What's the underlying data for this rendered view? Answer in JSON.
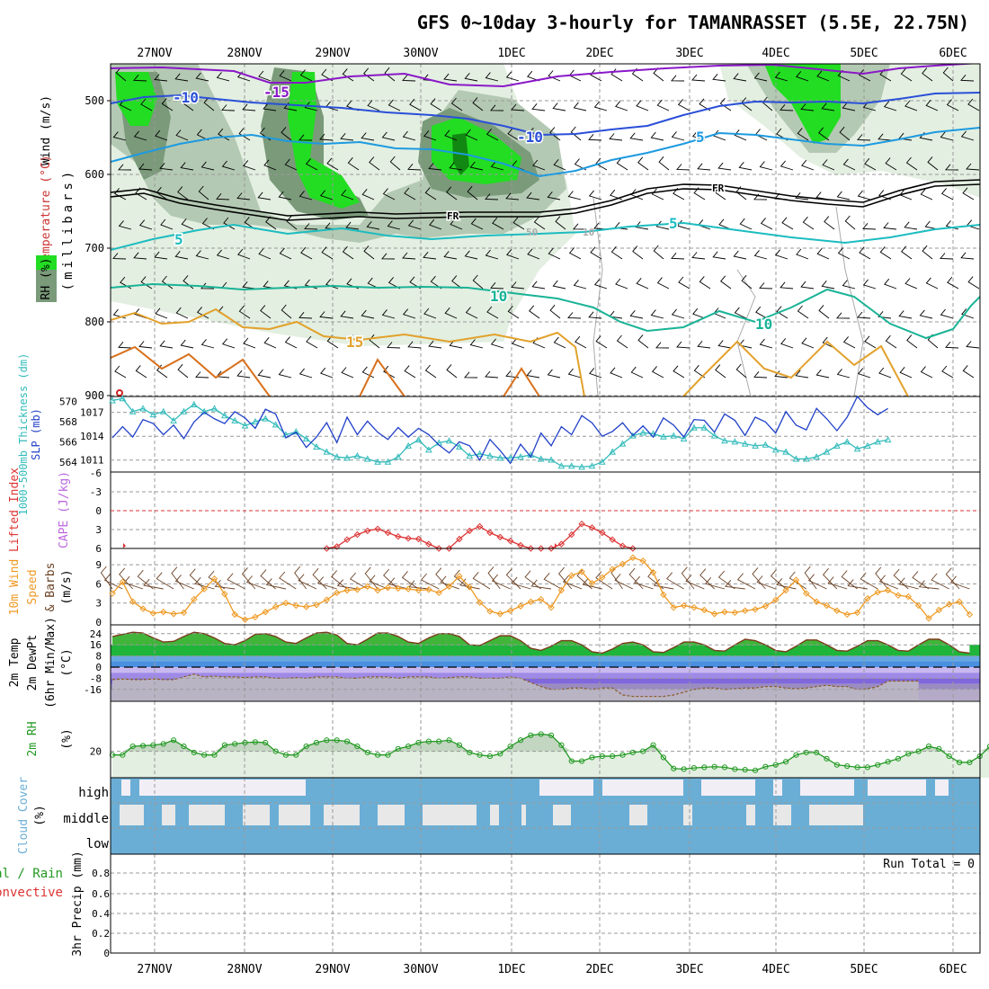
{
  "title": "GFS 0~10day 3-hourly for TAMANRASSET (5.5E, 22.75N)",
  "dates": [
    "27NOV",
    "28NOV",
    "29NOV",
    "30NOV",
    "1DEC",
    "2DEC",
    "3DEC",
    "4DEC",
    "5DEC",
    "6DEC"
  ],
  "colors": {
    "frame": "#000000",
    "grid": "#999999",
    "rh_light": "#e3efe1",
    "rh_mid": "#b4c9b3",
    "rh_dark": "#7a9a7a",
    "rh_green": "#22dd22",
    "rh_deep": "#118811",
    "temp_m15": "#8a18c8",
    "temp_m10": "#2a4fd8",
    "temp_m5": "#1d9ae0",
    "temp_5": "#1cbcc0",
    "temp_10": "#19b396",
    "temp_15": "#e2a12b",
    "temp_20": "#d8701c",
    "slp": "#2140c8",
    "thickness": "#33bbbb",
    "li": "#dd3333",
    "cape": "#bb66dd",
    "wind_speed": "#ee9922",
    "barb": "#6b4226",
    "temp2m": "#cc3333",
    "rh2m": "#229922",
    "cloud": "#6aaed6",
    "cloud_clear_high": "#f2eef5",
    "cloud_clear_mid": "#e8e8e8",
    "precip_total": "#229922",
    "precip_conv": "#dd3333"
  },
  "panels": {
    "upper": {
      "ylabel_wind": "Wind (m/s)",
      "ylabel_temp": "Temperature (°C)",
      "ylabel_rh": "RH (%)",
      "ylabel_mb": "(millibars)",
      "pressure_ticks": [
        "500",
        "600",
        "700",
        "800",
        "900"
      ],
      "contour_labels": {
        "m15": "-15",
        "m10a": "-10",
        "m10b": "-10",
        "m5": "5",
        "fr1": "FR",
        "fr2": "FR",
        "p5a": "5",
        "p5b": "5",
        "p10a": "10",
        "p10b": "10",
        "p15": "15",
        "rh50": "50",
        "rh10": "10"
      }
    },
    "slp": {
      "ylabel_thick": "1000-500mb Thickness (dm)",
      "ylabel_slp": "SLP (mb)",
      "thick_ticks": [
        "570",
        "568",
        "566",
        "564"
      ],
      "slp_ticks": [
        "1017",
        "1014",
        "1011"
      ]
    },
    "li": {
      "ylabel_li": "Lifted Index",
      "ylabel_cape": "CAPE (J/kg)",
      "ticks": [
        "-6",
        "-3",
        "0",
        "3",
        "6"
      ]
    },
    "wind10": {
      "ylabel1": "10m Wind",
      "ylabel2": "Speed",
      "ylabel3": "& Barbs",
      "ylabel_units": "(m/s)",
      "ticks": [
        "9",
        "6",
        "3",
        "0"
      ]
    },
    "temp2m": {
      "ylabel1": "2m Temp",
      "ylabel2": "2m DewPt",
      "ylabel3": "(6hr Min/Max)",
      "ylabel_units": "(°C)",
      "ticks": [
        "24",
        "16",
        "8",
        "0",
        "-8",
        "-16"
      ]
    },
    "rh2m": {
      "ylabel1": "2m RH",
      "ylabel_units": "(%)",
      "ticks": [
        "20"
      ]
    },
    "cloud": {
      "ylabel1": "Cloud Cover",
      "ylabel_units": "(%)",
      "levels": [
        "high",
        "middle",
        "low"
      ]
    },
    "precip": {
      "ylabel_total": "Total / Rain",
      "ylabel_conv": "Convective",
      "ylabel_units": "3hr Precip (mm)",
      "ticks": [
        "0.8",
        "0.6",
        "0.4",
        "0.2",
        "0"
      ],
      "run_total": "Run Total = 0"
    }
  },
  "chart_data": [
    {
      "type": "line",
      "title": "1000-500mb Thickness (dm) / SLP (mb)",
      "x_start": "26NOV 12Z",
      "x_step_hours": 3,
      "series": [
        {
          "name": "SLP (mb)",
          "axis": "right",
          "ylim": [
            1009.5,
            1019
          ],
          "values": [
            1013.8,
            1015.2,
            1013.9,
            1016.1,
            1015.6,
            1014.2,
            1015.4,
            1013.7,
            1015.8,
            1017.0,
            1016.2,
            1015.6,
            1017.1,
            1016.3,
            1015.0,
            1017.4,
            1016.8,
            1013.8,
            1014.5,
            1012.6,
            1013.9,
            1015.7,
            1013.2,
            1016.4,
            1014.2,
            1015.9,
            1014.5,
            1013.6,
            1015.1,
            1013.9,
            1015.0,
            1014.2,
            1012.9,
            1011.9,
            1013.3,
            1012.8,
            1011.0,
            1013.6,
            1012.2,
            1010.6,
            1013.0,
            1011.4,
            1014.4,
            1012.8,
            1015.2,
            1014.2,
            1016.6,
            1015.7,
            1014.0,
            1014.6,
            1015.7,
            1014.1,
            1015.3,
            1013.9,
            1016.3,
            1015.4,
            1013.9,
            1016.1,
            1016.0,
            1014.5,
            1016.8,
            1016.0,
            1014.1,
            1016.4,
            1015.8,
            1014.4,
            1017.1,
            1015.4,
            1014.8,
            1017.5,
            1016.2,
            1014.7,
            1016.4,
            1019.0,
            1017.6,
            1016.7,
            1017.5
          ]
        },
        {
          "name": "1000-500mb Thickness (dm)",
          "axis": "left",
          "ylim": [
            563,
            570.5
          ],
          "values": [
            570.1,
            570.3,
            569.0,
            569.3,
            568.7,
            569.0,
            568.1,
            569.0,
            569.7,
            569.0,
            569.3,
            568.6,
            568.1,
            567.6,
            568.0,
            568.3,
            567.7,
            566.7,
            567.0,
            566.3,
            565.5,
            565.0,
            564.5,
            564.4,
            564.6,
            564.3,
            564.0,
            564.0,
            564.5,
            565.6,
            566.2,
            565.2,
            565.9,
            566.1,
            565.5,
            564.6,
            564.8,
            564.6,
            564.4,
            564.4,
            564.5,
            564.7,
            564.3,
            564.2,
            563.6,
            563.6,
            563.5,
            563.6,
            564.0,
            565.0,
            565.8,
            566.6,
            566.9,
            566.8,
            566.5,
            566.6,
            566.3,
            567.4,
            567.4,
            566.6,
            566.1,
            566.0,
            565.8,
            565.6,
            565.7,
            565.2,
            565.0,
            564.3,
            564.3,
            564.5,
            565.0,
            565.6,
            566.0,
            565.3,
            565.6,
            566.0,
            566.2
          ]
        }
      ]
    },
    {
      "type": "line",
      "title": "Lifted Index / CAPE (J/kg)",
      "ylim": [
        6,
        -6
      ],
      "series": [
        {
          "name": "Lifted Index",
          "segment_index_start": 21,
          "values": [
            6,
            5.7,
            4.6,
            3.8,
            3.2,
            2.9,
            3.5,
            4.1,
            4.4,
            4.5,
            5.3,
            6,
            6,
            4.5,
            3.2,
            2.5,
            3.5,
            4.2,
            4.8,
            5.5,
            6,
            6,
            6,
            5.3,
            3.8,
            2.1,
            2.7,
            3.5,
            4.6,
            5.6,
            6
          ]
        }
      ]
    },
    {
      "type": "line",
      "title": "10m Wind Speed & Barbs (m/s)",
      "ylim": [
        0,
        10.5
      ],
      "series": [
        {
          "name": "10m Wind Speed",
          "values": [
            4.5,
            6.3,
            3.2,
            2.1,
            1.4,
            1.6,
            1.3,
            1.5,
            3.6,
            5.2,
            6.8,
            4.4,
            1.2,
            0.4,
            0.8,
            1.6,
            2.4,
            3.0,
            2.6,
            2.4,
            2.7,
            3.5,
            4.6,
            5.0,
            5.1,
            5.6,
            5.0,
            5.4,
            5.3,
            5.2,
            5.0,
            5.1,
            4.6,
            5.6,
            7.2,
            5.5,
            3.1,
            1.7,
            1.3,
            1.8,
            2.5,
            3.2,
            3.6,
            2.3,
            5.0,
            7.3,
            7.9,
            6.1,
            7.0,
            8.3,
            9.1,
            10.1,
            9.6,
            7.8,
            4.3,
            2.3,
            2.6,
            2.3,
            1.9,
            1.3,
            1.6,
            1.5,
            1.8,
            2.0,
            2.5,
            3.5,
            5.0,
            6.6,
            4.5,
            3.2,
            2.6,
            1.8,
            1.2,
            1.5,
            3.7,
            4.7,
            5.0,
            4.2,
            4.0,
            2.6,
            0.6,
            1.9,
            2.8,
            3.2,
            1.2
          ]
        }
      ]
    },
    {
      "type": "area",
      "title": "2m Temp / 2m DewPt (6hr Min/Max) (°C)",
      "ylim": [
        -24,
        28
      ],
      "series": [
        {
          "name": "2m Temp",
          "values": [
            22,
            23.5,
            25,
            24.5,
            21,
            18,
            18.5,
            22,
            25,
            24,
            21,
            17,
            16,
            19,
            23.5,
            24,
            22,
            18,
            17,
            21,
            24.5,
            25,
            23,
            17,
            16,
            20,
            24.5,
            24.5,
            22,
            18,
            17,
            21,
            24,
            24,
            22,
            16,
            15.5,
            19,
            22.5,
            22.5,
            19,
            13.5,
            12,
            15,
            19,
            19,
            16,
            11,
            10,
            13,
            17,
            18,
            16,
            11,
            10.5,
            14,
            18,
            18,
            16,
            12,
            11.5,
            16,
            20,
            19,
            16,
            12,
            11,
            15,
            19.5,
            19.5,
            16,
            12,
            11.5,
            15,
            19,
            19,
            16,
            12,
            11.5,
            16,
            20,
            20,
            16,
            11,
            10
          ]
        },
        {
          "name": "2m DewPt",
          "values": [
            -9,
            -8.5,
            -9,
            -9,
            -8.5,
            -9,
            -9,
            -7,
            -5,
            -7,
            -6.5,
            -7,
            -7,
            -7.5,
            -7,
            -7,
            -8,
            -8,
            -7.5,
            -8,
            -7,
            -7,
            -7,
            -8,
            -8,
            -7,
            -7,
            -7,
            -8,
            -7,
            -7,
            -7,
            -8,
            -7.5,
            -7,
            -7,
            -8,
            -8,
            -8,
            -7,
            -8,
            -11,
            -14,
            -16,
            -16,
            -15,
            -15,
            -16,
            -15,
            -15,
            -20,
            -21,
            -21,
            -21,
            -21,
            -20,
            -18,
            -16,
            -15,
            -15,
            -16,
            -15.5,
            -15,
            -15,
            -14,
            -14,
            -15,
            -15.5,
            -15,
            -14,
            -13,
            -14,
            -14,
            -16,
            -15.5,
            -14,
            -10,
            -10,
            -10,
            -10
          ]
        }
      ]
    },
    {
      "type": "area",
      "title": "2m RH (%)",
      "ylim": [
        0,
        40
      ],
      "series": [
        {
          "name": "2m RH",
          "values": [
            17,
            17,
            24,
            24.5,
            25,
            26,
            29,
            24,
            19,
            17,
            17,
            25,
            26,
            27,
            27.5,
            27,
            20,
            17,
            17,
            24,
            27,
            29,
            29,
            28,
            24,
            19,
            17,
            17,
            22,
            24,
            27,
            28,
            28,
            29,
            25,
            19,
            17,
            16,
            18,
            24,
            29,
            33,
            34,
            33,
            25,
            12,
            12,
            15,
            16,
            16,
            17,
            19,
            20,
            25,
            15,
            6,
            5.5,
            6.5,
            7,
            7.5,
            7,
            5.5,
            5,
            4.5,
            7.5,
            9,
            11.5,
            17,
            19,
            19,
            14,
            9,
            8,
            7,
            7,
            9,
            11.5,
            14,
            18,
            20,
            24,
            22,
            16,
            11,
            11,
            16,
            24,
            23,
            23,
            24
          ]
        }
      ]
    },
    {
      "type": "bar",
      "title": "3hr Precip (mm)",
      "ylim": [
        0,
        0.9
      ],
      "series": [
        {
          "name": "Total / Rain",
          "values": []
        },
        {
          "name": "Convective",
          "values": []
        }
      ]
    }
  ]
}
